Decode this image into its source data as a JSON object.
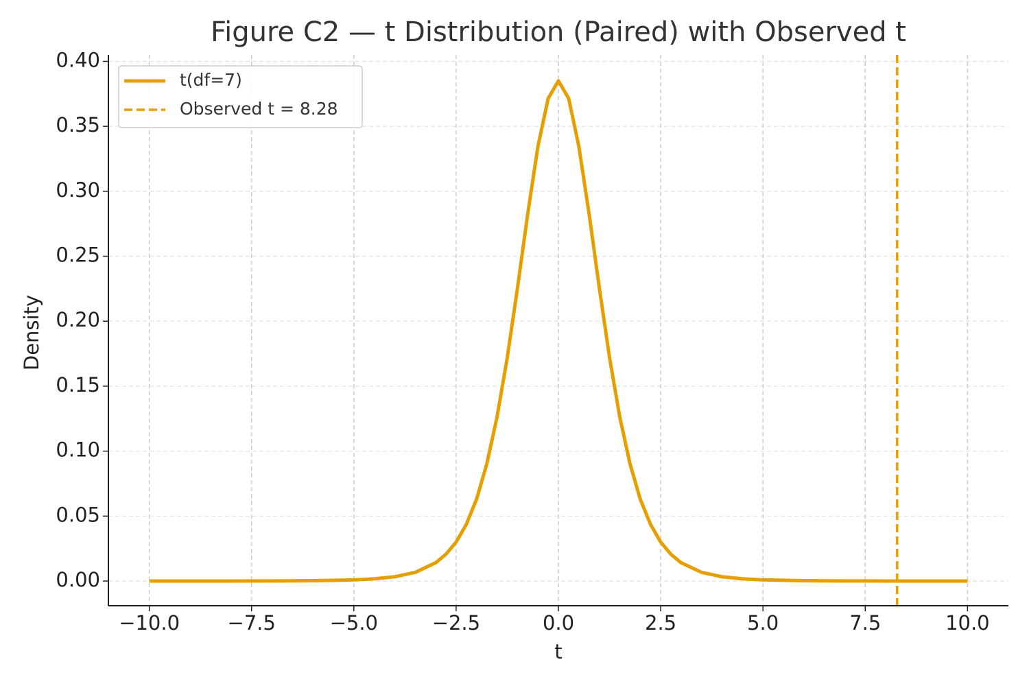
{
  "chart_data": {
    "type": "line",
    "title": "Figure C2 — t Distribution (Paired) with Observed t",
    "x_label": "t",
    "y_label": "Density",
    "x": [
      -10,
      -9,
      -8,
      -7,
      -6,
      -5,
      -4.5,
      -4,
      -3.5,
      -3,
      -2.75,
      -2.5,
      -2.25,
      -2,
      -1.75,
      -1.5,
      -1.25,
      -1,
      -0.75,
      -0.5,
      -0.25,
      0,
      0.25,
      0.5,
      0.75,
      1,
      1.25,
      1.5,
      1.75,
      2,
      2.25,
      2.5,
      2.75,
      3,
      3.5,
      4,
      4.5,
      5,
      6,
      7,
      8,
      9,
      10
    ],
    "series": [
      {
        "name": "t(df=7)",
        "color": "#e69f00",
        "values": [
          7e-06,
          2e-05,
          4e-05,
          0.0001,
          0.0003,
          0.0009,
          0.0017,
          0.0033,
          0.0067,
          0.0141,
          0.0206,
          0.03,
          0.0437,
          0.0631,
          0.0902,
          0.1263,
          0.172,
          0.2257,
          0.2826,
          0.3346,
          0.3715,
          0.385,
          0.3715,
          0.3346,
          0.2826,
          0.2257,
          0.172,
          0.1263,
          0.0902,
          0.0631,
          0.0437,
          0.03,
          0.0206,
          0.0141,
          0.0067,
          0.0033,
          0.0017,
          0.0009,
          0.0003,
          0.0001,
          4e-05,
          2e-05,
          7e-06
        ]
      }
    ],
    "observed": {
      "name": "Observed t = 8.28",
      "value": 8.28,
      "color": "#e69f00"
    },
    "xlim": [
      -11,
      11
    ],
    "ylim": [
      -0.019,
      0.405
    ],
    "xticks": [
      {
        "value": -10,
        "label": "−10.0"
      },
      {
        "value": -7.5,
        "label": "−7.5"
      },
      {
        "value": -5,
        "label": "−5.0"
      },
      {
        "value": -2.5,
        "label": "−2.5"
      },
      {
        "value": 0,
        "label": "0.0"
      },
      {
        "value": 2.5,
        "label": "2.5"
      },
      {
        "value": 5,
        "label": "5.0"
      },
      {
        "value": 7.5,
        "label": "7.5"
      },
      {
        "value": 10,
        "label": "10.0"
      }
    ],
    "yticks": [
      {
        "value": 0,
        "label": "0.00"
      },
      {
        "value": 0.05,
        "label": "0.05"
      },
      {
        "value": 0.1,
        "label": "0.10"
      },
      {
        "value": 0.15,
        "label": "0.15"
      },
      {
        "value": 0.2,
        "label": "0.20"
      },
      {
        "value": 0.25,
        "label": "0.25"
      },
      {
        "value": 0.3,
        "label": "0.30"
      },
      {
        "value": 0.35,
        "label": "0.35"
      },
      {
        "value": 0.4,
        "label": "0.40"
      }
    ],
    "grid": true,
    "legend": "upper left"
  }
}
